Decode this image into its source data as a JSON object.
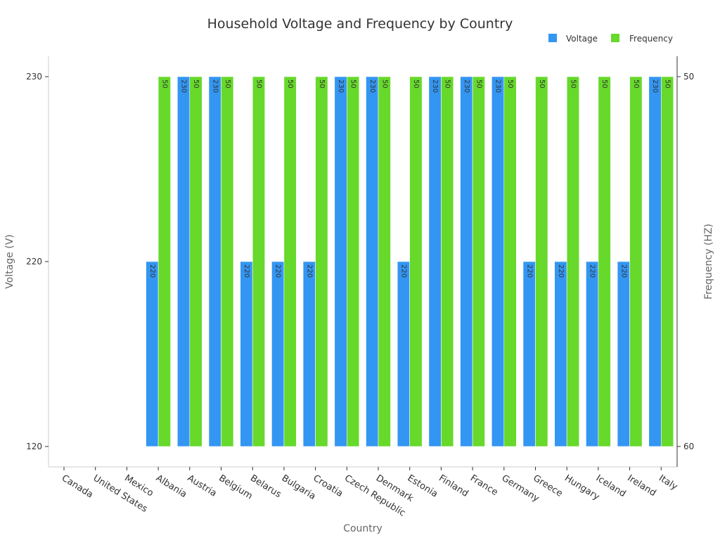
{
  "colors": {
    "voltage": "#3396f3",
    "frequency": "#66d92a"
  },
  "chart_data": {
    "type": "bar",
    "title": "Household Voltage and Frequency by Country",
    "xlabel": "Country",
    "ylabel_left": "Voltage (V)",
    "ylabel_right": "Frequency (HZ)",
    "categories": [
      "Canada",
      "United States",
      "Mexico",
      "Albania",
      "Austria",
      "Belgium",
      "Belarus",
      "Bulgaria",
      "Croatia",
      "Czech Republic",
      "Denmark",
      "Estonia",
      "Finland",
      "France",
      "Germany",
      "Greece",
      "Hungary",
      "Iceland",
      "Ireland",
      "Italy"
    ],
    "series": [
      {
        "name": "Voltage",
        "axis": "left",
        "values": [
          120,
          120,
          120,
          220,
          230,
          230,
          220,
          220,
          220,
          230,
          230,
          220,
          230,
          230,
          230,
          220,
          220,
          220,
          220,
          230
        ]
      },
      {
        "name": "Frequency",
        "axis": "right",
        "values": [
          60,
          60,
          60,
          50,
          50,
          50,
          50,
          50,
          50,
          50,
          50,
          50,
          50,
          50,
          50,
          50,
          50,
          50,
          50,
          50
        ]
      }
    ],
    "left_axis": {
      "ticks": [
        "120",
        "220",
        "230"
      ],
      "tick_values": [
        120,
        220,
        230
      ]
    },
    "right_axis": {
      "ticks": [
        "60",
        "50"
      ],
      "tick_values": [
        60,
        50
      ]
    },
    "legend": [
      "Voltage",
      "Frequency"
    ],
    "legend_position": "top-right",
    "grid": false
  }
}
